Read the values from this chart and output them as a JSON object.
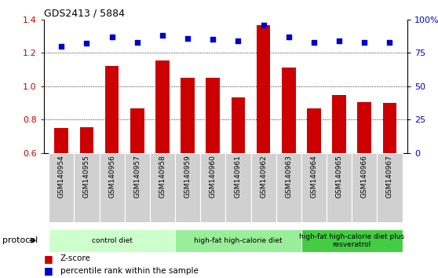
{
  "title": "GDS2413 / 5884",
  "samples": [
    "GSM140954",
    "GSM140955",
    "GSM140956",
    "GSM140957",
    "GSM140958",
    "GSM140959",
    "GSM140960",
    "GSM140961",
    "GSM140962",
    "GSM140963",
    "GSM140964",
    "GSM140965",
    "GSM140966",
    "GSM140967"
  ],
  "z_scores": [
    0.75,
    0.755,
    1.12,
    0.865,
    1.155,
    1.05,
    1.05,
    0.935,
    1.365,
    1.11,
    0.865,
    0.945,
    0.905,
    0.9
  ],
  "percentile_ranks": [
    80,
    82,
    87,
    83,
    88,
    86,
    85,
    84,
    96,
    87,
    83,
    84,
    83,
    83
  ],
  "bar_color": "#cc0000",
  "dot_color": "#0000cc",
  "ylim_left": [
    0.6,
    1.4
  ],
  "ylim_right": [
    0,
    100
  ],
  "yticks_left": [
    0.6,
    0.8,
    1.0,
    1.2,
    1.4
  ],
  "yticks_right": [
    0,
    25,
    50,
    75,
    100
  ],
  "ytick_labels_right": [
    "0",
    "25",
    "50",
    "75",
    "100%"
  ],
  "grid_values": [
    0.8,
    1.0,
    1.2
  ],
  "protocol_groups": [
    {
      "label": "control diet",
      "start": 0,
      "end": 4,
      "color": "#ccffcc"
    },
    {
      "label": "high-fat high-calorie diet",
      "start": 5,
      "end": 9,
      "color": "#99ee99"
    },
    {
      "label": "high-fat high-calorie diet plus\nresveratrol",
      "start": 10,
      "end": 13,
      "color": "#44cc44"
    }
  ],
  "legend_z_label": "Z-score",
  "legend_pct_label": "percentile rank within the sample",
  "protocol_label": "protocol",
  "background_color": "#ffffff",
  "tick_area_color": "#d0d0d0"
}
